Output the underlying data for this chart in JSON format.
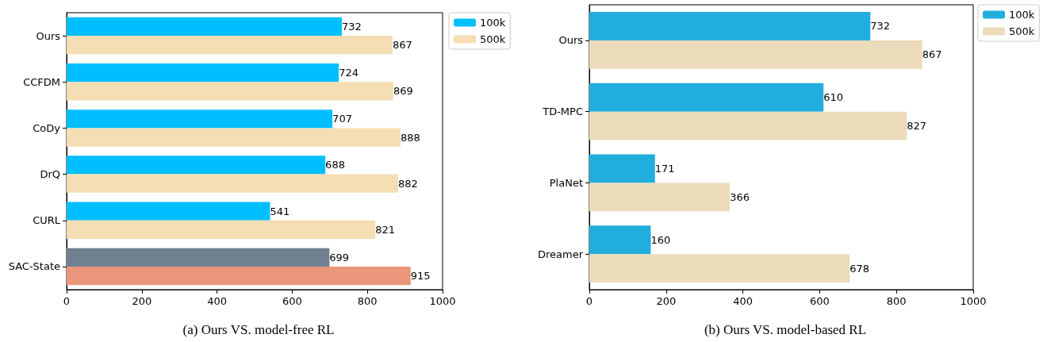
{
  "chart_data": [
    {
      "type": "bar",
      "orientation": "horizontal",
      "title": "(a) Ours VS. model-free RL",
      "categories": [
        "Ours",
        "CCFDM",
        "CoDy",
        "DrQ",
        "CURL",
        "SAC-State"
      ],
      "series": [
        {
          "name": "100k",
          "color": "#00bfff",
          "colors": [
            "#00bfff",
            "#00bfff",
            "#00bfff",
            "#00bfff",
            "#00bfff",
            "#708090"
          ],
          "values": [
            732,
            724,
            707,
            688,
            541,
            699
          ]
        },
        {
          "name": "500k",
          "color": "#f5deb3",
          "colors": [
            "#f5deb3",
            "#f5deb3",
            "#f5deb3",
            "#f5deb3",
            "#f5deb3",
            "#e9967a"
          ],
          "values": [
            867,
            869,
            888,
            882,
            821,
            915
          ]
        }
      ],
      "xlim": [
        0,
        1000
      ],
      "xticks": [
        0,
        200,
        400,
        600,
        800,
        1000
      ],
      "data_labels": true,
      "legend": "top right",
      "grid": false
    },
    {
      "type": "bar",
      "orientation": "horizontal",
      "title": "(b) Ours VS. model-based RL",
      "categories": [
        "Ours",
        "TD-MPC",
        "PlaNet",
        "Dreamer"
      ],
      "series": [
        {
          "name": "100k",
          "color": "#22aedd",
          "values": [
            732,
            610,
            171,
            160
          ]
        },
        {
          "name": "500k",
          "color": "#ebdbba",
          "values": [
            867,
            827,
            366,
            678
          ]
        }
      ],
      "xlim": [
        0,
        1000
      ],
      "xticks": [
        0,
        200,
        400,
        600,
        800,
        1000
      ],
      "data_labels": true,
      "legend": "top right",
      "grid": false
    }
  ]
}
